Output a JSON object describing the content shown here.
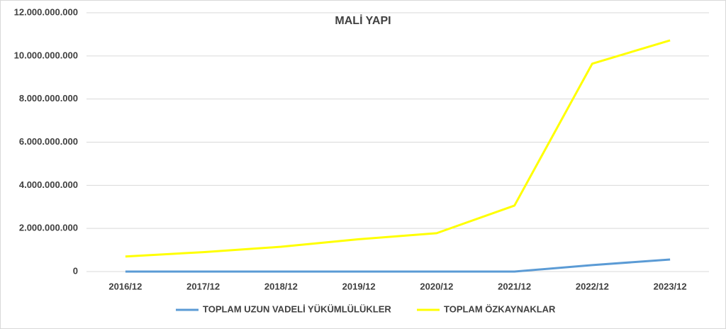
{
  "chart_data": {
    "type": "line",
    "title": "MALİ YAPI",
    "categories": [
      "2016/12",
      "2017/12",
      "2018/12",
      "2019/12",
      "2020/12",
      "2021/12",
      "2022/12",
      "2023/12"
    ],
    "series": [
      {
        "name": "TOPLAM UZUN VADELİ YÜKÜMLÜLÜKLER",
        "color": "#5b9bd5",
        "values": [
          0,
          0,
          0,
          0,
          0,
          0,
          300000000,
          560000000
        ]
      },
      {
        "name": "TOPLAM ÖZKAYNAKLAR",
        "color": "#ffff00",
        "values": [
          700000000,
          900000000,
          1150000000,
          1500000000,
          1780000000,
          3060000000,
          9640000000,
          10720000000
        ]
      }
    ],
    "ylim": [
      0,
      12000000000
    ],
    "yticks": [
      0,
      {
        "value": 2000000000,
        "label": "2.000.000.000"
      },
      {
        "value": 4000000000,
        "label": "4.000.000.000"
      },
      {
        "value": 6000000000,
        "label": "6.000.000.000"
      },
      {
        "value": 8000000000,
        "label": "8.000.000.000"
      },
      {
        "value": 10000000000,
        "label": "10.000.000.000"
      },
      {
        "value": 12000000000,
        "label": "12.000.000.000"
      }
    ],
    "grid": true,
    "legend": "bottom"
  }
}
